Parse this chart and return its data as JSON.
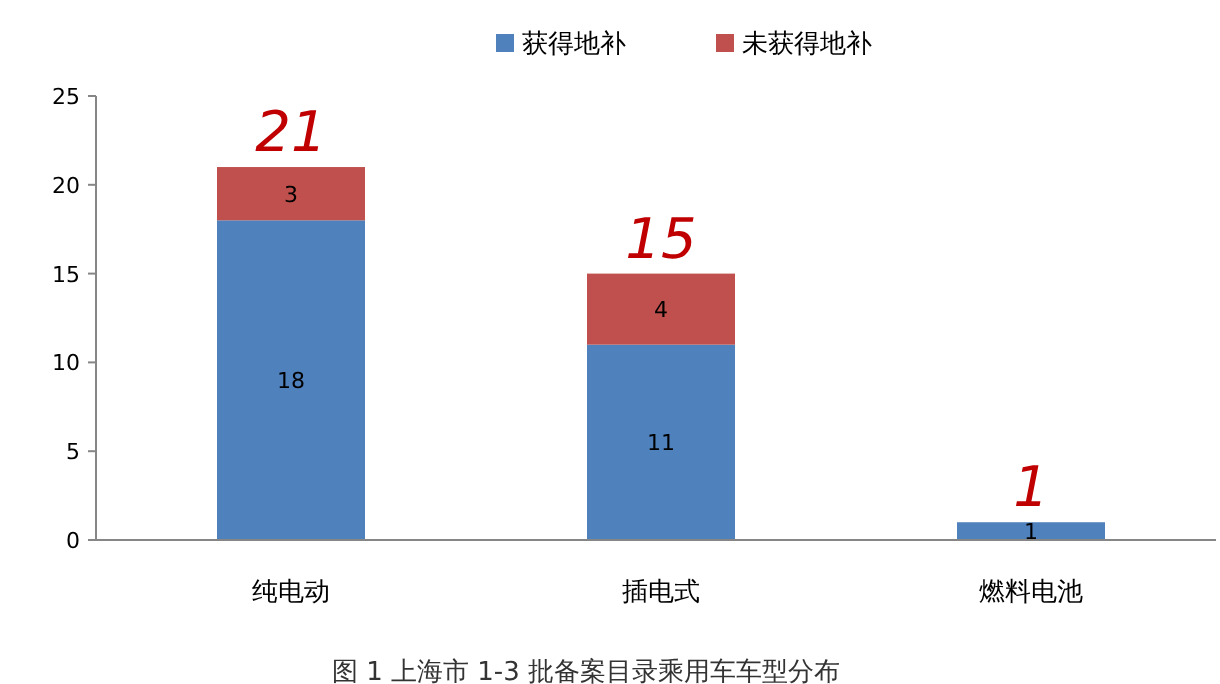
{
  "chart_data": {
    "type": "bar",
    "stacked": true,
    "title": "图 1 上海市 1-3 批备案目录乘用车车型分布",
    "categories": [
      "纯电动",
      "插电式",
      "燃料电池"
    ],
    "series": [
      {
        "name": "获得地补",
        "color": "#4f81bd",
        "values": [
          18,
          11,
          1
        ],
        "value_labels": [
          "18",
          "11",
          "1"
        ]
      },
      {
        "name": "未获得地补",
        "color": "#c0504d",
        "values": [
          3,
          4,
          null
        ],
        "value_labels": [
          "3",
          "4",
          null
        ]
      }
    ],
    "totals": [
      "21",
      "15",
      "1"
    ],
    "ylim": [
      0,
      25
    ],
    "yticks": [
      0,
      5,
      10,
      15,
      20,
      25
    ],
    "grid": false,
    "legend": "top"
  }
}
